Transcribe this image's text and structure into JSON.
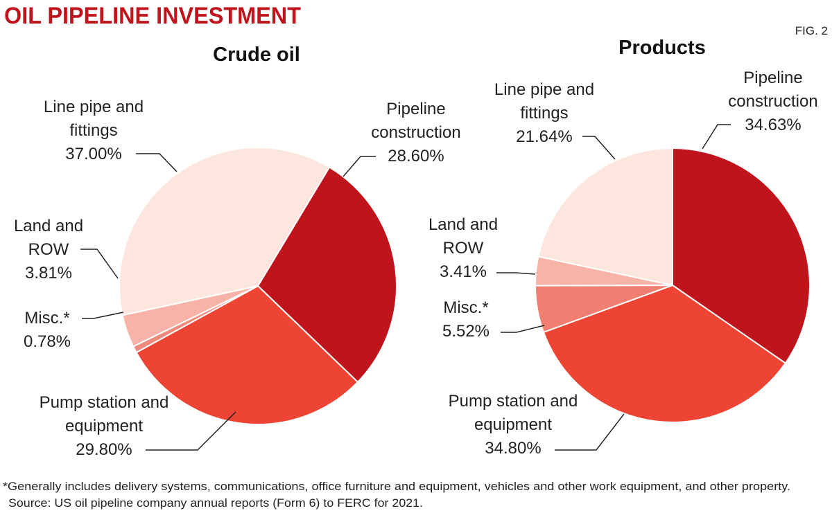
{
  "title": "OIL PIPELINE INVESTMENT",
  "figure_label": "FIG. 2",
  "chart_data": [
    {
      "type": "pie",
      "title": "Crude oil",
      "categories": [
        "Pipeline construction",
        "Pump station and equipment",
        "Misc.*",
        "Land and ROW",
        "Line pipe and fittings"
      ],
      "values": [
        28.6,
        29.8,
        0.78,
        3.81,
        37.0
      ],
      "value_labels": [
        "28.60%",
        "29.80%",
        "0.78%",
        "3.81%",
        "37.00%"
      ],
      "colors": [
        "#c0141c",
        "#ee4433",
        "#f08a7c",
        "#f7b3a7",
        "#fde6dd"
      ]
    },
    {
      "type": "pie",
      "title": "Products",
      "categories": [
        "Pipeline construction",
        "Pump station and equipment",
        "Misc.*",
        "Land and ROW",
        "Line pipe and fittings"
      ],
      "values": [
        34.63,
        34.8,
        5.52,
        3.41,
        21.64
      ],
      "value_labels": [
        "34.63%",
        "34.80%",
        "5.52%",
        "3.41%",
        "21.64%"
      ],
      "colors": [
        "#c0141c",
        "#ee4433",
        "#f07f72",
        "#f7b3a7",
        "#fde6dd"
      ]
    }
  ],
  "footnote": "*Generally includes delivery systems, communications, office furniture and equipment, vehicles and other work equipment, and other property.",
  "source": "Source: US oil pipeline company annual reports (Form 6) to FERC for 2021."
}
